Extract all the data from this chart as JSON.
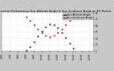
{
  "title": "Solar PV/Inverter Performance Sun Altitude Angle & Sun Incidence Angle on PV Panels",
  "legend_labels": [
    "Sun Altitude Angle",
    "Sun Incidence Angle"
  ],
  "legend_colors": [
    "#0000cc",
    "#cc0000"
  ],
  "bg_color": "#c8c8c8",
  "plot_bg_color": "#ffffff",
  "grid_color": "#b0b0b0",
  "ylim": [
    0,
    90
  ],
  "xlim": [
    0,
    23
  ],
  "time_points": [
    0,
    1,
    2,
    3,
    4,
    5,
    6,
    7,
    8,
    9,
    10,
    11,
    12,
    13,
    14,
    15,
    16,
    17,
    18,
    19,
    20,
    21,
    22,
    23
  ],
  "altitude_values": [
    -999,
    -999,
    -999,
    -999,
    -999,
    -999,
    2,
    10,
    22,
    35,
    47,
    57,
    63,
    62,
    55,
    44,
    32,
    19,
    7,
    -999,
    -999,
    -999,
    -999,
    -999
  ],
  "incidence_values": [
    -999,
    -999,
    -999,
    -999,
    -999,
    -999,
    80,
    72,
    62,
    52,
    43,
    37,
    34,
    36,
    43,
    52,
    62,
    72,
    80,
    -999,
    -999,
    -999,
    -999,
    -999
  ],
  "marker_size": 1.2,
  "title_fontsize": 3.0,
  "tick_fontsize": 2.2,
  "legend_fontsize": 2.5,
  "yticks": [
    0,
    15,
    30,
    45,
    60,
    75,
    90
  ],
  "ytick_labels": [
    "0",
    "15",
    "30",
    "45",
    "60",
    "75",
    "90"
  ],
  "xtick_step": 2
}
